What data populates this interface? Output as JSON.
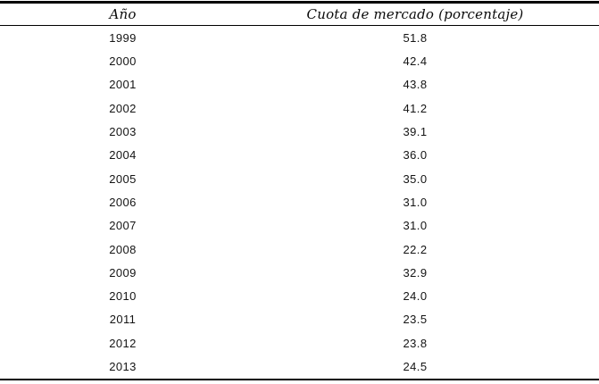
{
  "table": {
    "columns": [
      "Año",
      "Cuota de mercado (porcentaje)"
    ],
    "rows": [
      [
        "1999",
        "51.8"
      ],
      [
        "2000",
        "42.4"
      ],
      [
        "2001",
        "43.8"
      ],
      [
        "2002",
        "41.2"
      ],
      [
        "2003",
        "39.1"
      ],
      [
        "2004",
        "36.0"
      ],
      [
        "2005",
        "35.0"
      ],
      [
        "2006",
        "31.0"
      ],
      [
        "2007",
        "31.0"
      ],
      [
        "2008",
        "22.2"
      ],
      [
        "2009",
        "32.9"
      ],
      [
        "2010",
        "24.0"
      ],
      [
        "2011",
        "23.5"
      ],
      [
        "2012",
        "23.8"
      ],
      [
        "2013",
        "24.5"
      ]
    ]
  },
  "chart_data": {
    "type": "table",
    "title": "",
    "columns": [
      "Año",
      "Cuota de mercado (porcentaje)"
    ],
    "x": [
      1999,
      2000,
      2001,
      2002,
      2003,
      2004,
      2005,
      2006,
      2007,
      2008,
      2009,
      2010,
      2011,
      2012,
      2013
    ],
    "values": [
      51.8,
      42.4,
      43.8,
      41.2,
      39.1,
      36.0,
      35.0,
      31.0,
      31.0,
      22.2,
      32.9,
      24.0,
      23.5,
      23.8,
      24.5
    ],
    "xlabel": "Año",
    "ylabel": "Cuota de mercado (porcentaje)"
  },
  "colors": {
    "background": "#ffffff",
    "text": "#141414",
    "rule": "#000000"
  }
}
